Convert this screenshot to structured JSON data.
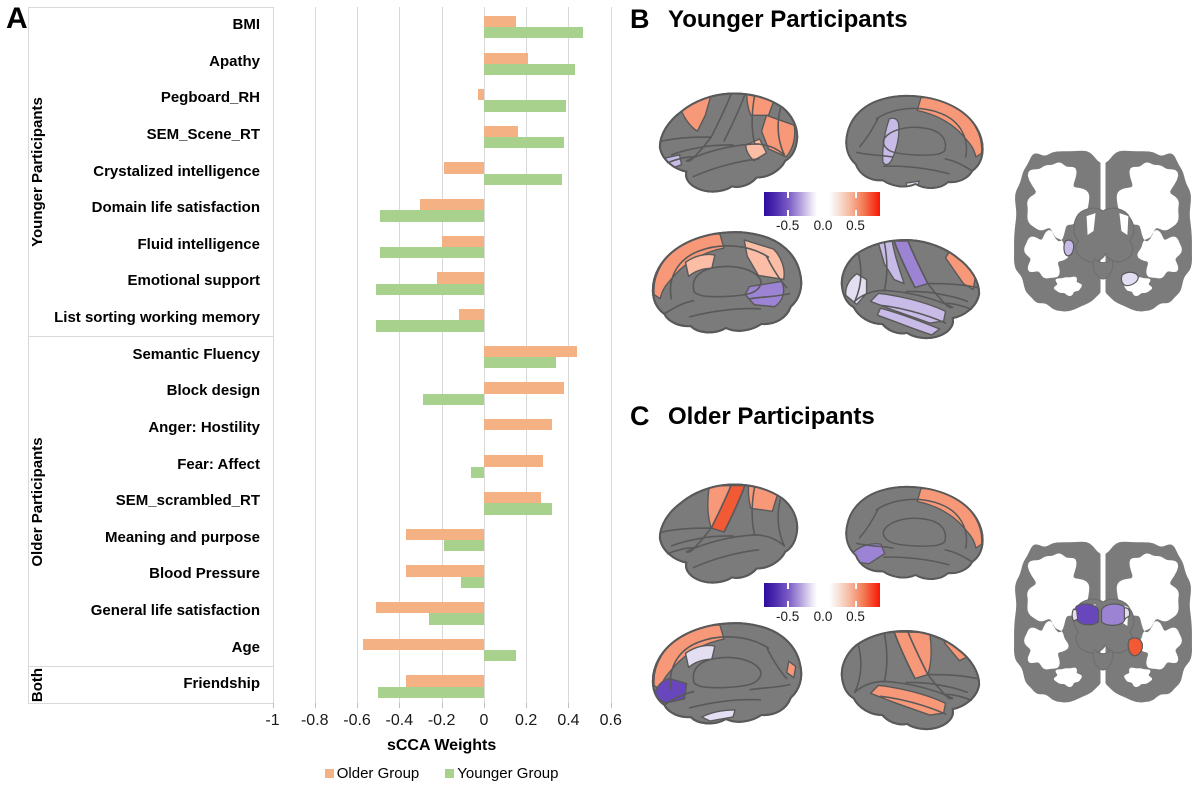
{
  "palette": {
    "older_bar": "#f4b183",
    "younger_bar": "#a9d18e",
    "gridline": "#d9d9d9",
    "brain_gray": "#7b7b7b",
    "brain_outline": "#595959",
    "salmon": "#f79879",
    "salmon_light": "#fbbda6",
    "red_orange": "#f25a35",
    "purple_dark": "#6847bd",
    "purple": "#9c83d3",
    "purple_light": "#c8bbe7",
    "purple_pale": "#e4def3",
    "colorbar_left": "#2d0d9e",
    "colorbar_right": "#fa1505"
  },
  "panel_a": {
    "label": "A"
  },
  "panel_b": {
    "label": "B",
    "title": "Younger Participants",
    "colorbar_ticks": [
      "-0.5",
      "0.0",
      "0.5"
    ]
  },
  "panel_c": {
    "label": "C",
    "title": "Older Participants",
    "colorbar_ticks": [
      "-0.5",
      "0.0",
      "0.5"
    ]
  },
  "chart_data": {
    "type": "bar",
    "orientation": "horizontal",
    "title": "",
    "xlabel": "sCCA Weights",
    "ylabel": "",
    "xlim": [
      -1,
      0.6
    ],
    "xticks": [
      -1,
      -0.8,
      -0.6,
      -0.4,
      -0.2,
      0,
      0.2,
      0.4,
      0.6
    ],
    "xtick_labels": [
      "-1",
      "-0.8",
      "-0.6",
      "-0.4",
      "-0.2",
      "0",
      "0.2",
      "0.4",
      "0.6"
    ],
    "grid": true,
    "legend_position": "bottom",
    "categories": [
      "BMI",
      "Apathy",
      "Pegboard_RH",
      "SEM_Scene_RT",
      "Crystalized intelligence",
      "Domain life satisfaction",
      "Fluid intelligence",
      "Emotional support",
      "List sorting working memory",
      "Semantic Fluency",
      "Block design",
      "Anger: Hostility",
      "Fear: Affect",
      "SEM_scrambled_RT",
      "Meaning and purpose",
      "Blood Pressure",
      "General life satisfaction",
      "Age",
      "Friendship"
    ],
    "category_groups": [
      {
        "label": "Younger Participants",
        "from": 0,
        "to": 8
      },
      {
        "label": "Older Participants",
        "from": 9,
        "to": 17
      },
      {
        "label": "Both",
        "from": 18,
        "to": 18
      }
    ],
    "series": [
      {
        "name": "Older Group",
        "color": "#f4b183",
        "values": [
          0.15,
          0.21,
          -0.03,
          0.16,
          -0.19,
          -0.3,
          -0.2,
          -0.22,
          -0.12,
          0.44,
          0.38,
          0.32,
          0.28,
          0.27,
          -0.37,
          -0.37,
          -0.51,
          -0.57,
          -0.37
        ]
      },
      {
        "name": "Younger Group",
        "color": "#a9d18e",
        "values": [
          0.47,
          0.43,
          0.39,
          0.38,
          0.37,
          -0.49,
          -0.49,
          -0.51,
          -0.51,
          0.34,
          -0.29,
          0.0,
          -0.06,
          0.32,
          -0.19,
          -0.11,
          -0.26,
          0.15,
          -0.5
        ]
      }
    ]
  }
}
